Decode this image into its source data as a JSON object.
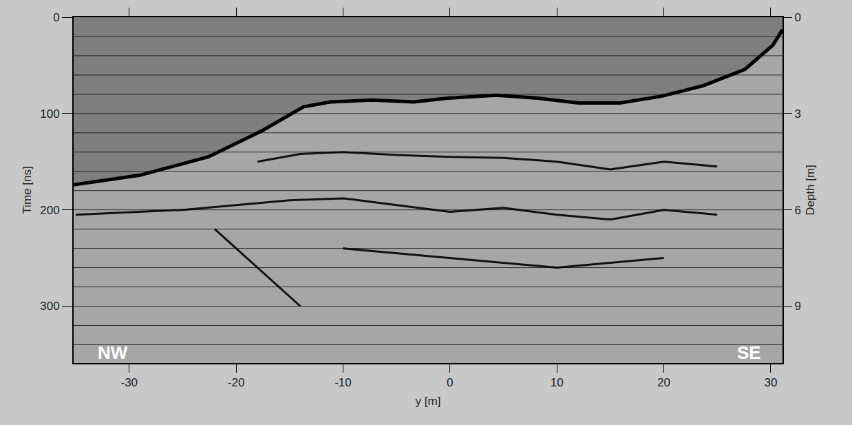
{
  "chart_data": {
    "type": "line",
    "xlabel": "y [m]",
    "ylabel": "Time [ns]",
    "y2label": "Depth [m]",
    "xlim": [
      -35.2,
      31.1
    ],
    "ylim": [
      359,
      0
    ],
    "y2lim": [
      10.77,
      0
    ],
    "xticks": [
      -30,
      -20,
      -10,
      0,
      10,
      20,
      30
    ],
    "yticks": [
      0,
      100,
      200,
      300
    ],
    "y2ticks": [
      0,
      3,
      6,
      9
    ],
    "ygrid": [
      20,
      40,
      60,
      80,
      100,
      120,
      140,
      160,
      180,
      200,
      220,
      240,
      260,
      280,
      300,
      320,
      340
    ],
    "grid": true,
    "series": [
      {
        "type": "area",
        "color": "#7f7f7f",
        "x": [
          -35.2,
          -29,
          -22.6,
          -17.6,
          -13.7,
          -11.2,
          -7.3,
          -3.4,
          -0.2,
          4.3,
          8.2,
          12,
          15.9,
          19.8,
          23.7,
          27.6,
          30.2,
          31.1
        ],
        "values": [
          174,
          164,
          145,
          118,
          93,
          88,
          86,
          88,
          84,
          81,
          84,
          89,
          89,
          82,
          71,
          54,
          29,
          13
        ]
      },
      {
        "color": "#111111",
        "x": [
          -18,
          -14,
          -10,
          -5,
          0,
          5,
          10,
          15,
          20,
          25
        ],
        "values": [
          150,
          142,
          140,
          143,
          145,
          146,
          150,
          158,
          150,
          155
        ]
      },
      {
        "color": "#111111",
        "x": [
          -35,
          -25,
          -15,
          -10,
          -5,
          0,
          5,
          10,
          15,
          20,
          25
        ],
        "values": [
          205,
          200,
          190,
          188,
          195,
          202,
          198,
          205,
          210,
          200,
          205
        ]
      },
      {
        "color": "#111111",
        "x": [
          -10,
          -5,
          0,
          5,
          10,
          15,
          20
        ],
        "values": [
          240,
          245,
          250,
          255,
          260,
          255,
          250
        ]
      },
      {
        "color": "#111111",
        "x": [
          -22,
          -18,
          -14
        ],
        "values": [
          220,
          260,
          300
        ]
      }
    ],
    "annotations": [
      {
        "text": "NW",
        "x": -31.5,
        "y": 348
      },
      {
        "text": "SE",
        "x": 28,
        "y": 348
      }
    ]
  }
}
